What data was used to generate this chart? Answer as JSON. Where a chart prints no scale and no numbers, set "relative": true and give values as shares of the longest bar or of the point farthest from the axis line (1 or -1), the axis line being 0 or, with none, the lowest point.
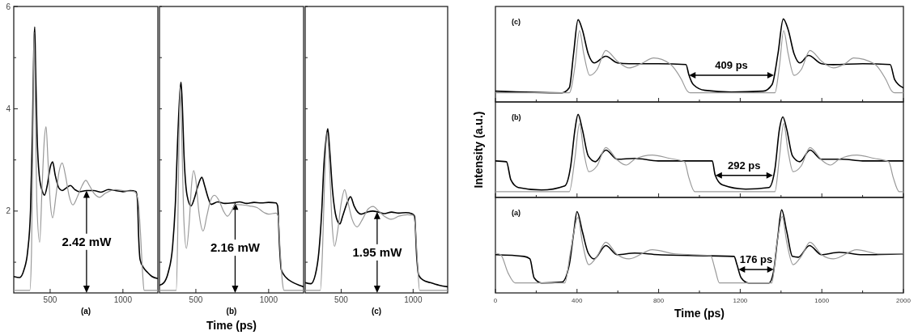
{
  "chart_data": [
    {
      "type": "line",
      "xlim": [
        250,
        1240
      ],
      "xticks": [
        500,
        1000
      ],
      "ylim": [
        0.4,
        6
      ],
      "yticks": [
        {
          "value": 1,
          "label": null
        },
        2,
        {
          "value": 3,
          "label": null
        },
        4,
        {
          "value": 5,
          "label": null
        },
        6
      ],
      "annotations": [
        "(a)",
        "2.42 mW"
      ],
      "series": [
        {
          "color": "#000000",
          "x": [
            250,
            290,
            320,
            345,
            365,
            378,
            388,
            394,
            400,
            410,
            425,
            445,
            461,
            480,
            500,
            517,
            535,
            560,
            583,
            610,
            639,
            670,
            700,
            750,
            800,
            850,
            900,
            950,
            1000,
            1050,
            1090,
            1100,
            1108,
            1118,
            1140,
            1170,
            1200,
            1240
          ],
          "values": [
            0.72,
            0.7,
            0.85,
            1.2,
            2.0,
            3.5,
            5.2,
            5.6,
            4.8,
            3.5,
            2.7,
            2.4,
            2.31,
            2.5,
            2.85,
            2.96,
            2.7,
            2.45,
            2.4,
            2.45,
            2.5,
            2.42,
            2.38,
            2.4,
            2.4,
            2.37,
            2.42,
            2.4,
            2.38,
            2.4,
            2.38,
            2.2,
            1.5,
            1.05,
            0.9,
            0.8,
            0.72,
            0.68
          ]
        },
        {
          "color": "#999999",
          "x": [
            250,
            360,
            372,
            382,
            389,
            396,
            408,
            428,
            445,
            460,
            472,
            485,
            500,
            517,
            540,
            560,
            583,
            605,
            630,
            656,
            690,
            720,
            745,
            770,
            800,
            839,
            880,
            950,
            1000,
            1080,
            1105,
            1120,
            1135,
            1145,
            1240
          ],
          "values": [
            0.45,
            0.45,
            1.2,
            3.5,
            5.5,
            4.5,
            2.2,
            1.39,
            2.5,
            3.4,
            3.65,
            3.0,
            2.2,
            1.87,
            2.3,
            2.75,
            2.94,
            2.7,
            2.3,
            2.12,
            2.3,
            2.5,
            2.6,
            2.5,
            2.35,
            2.27,
            2.35,
            2.42,
            2.4,
            2.38,
            2.2,
            1.6,
            0.8,
            0.45,
            0.45
          ]
        }
      ]
    },
    {
      "type": "line",
      "xlim": [
        250,
        1240
      ],
      "xticks": [
        500,
        1000
      ],
      "ylim": [
        0.4,
        6
      ],
      "yticks": [
        {
          "value": 1,
          "label": null
        },
        {
          "value": 2,
          "label": null
        },
        {
          "value": 3,
          "label": null
        },
        {
          "value": 4,
          "label": null
        },
        {
          "value": 5,
          "label": null
        },
        {
          "value": 6,
          "label": null
        }
      ],
      "tick_labels": "x",
      "xlabel": "Time (ps)",
      "annotations": [
        "(b)",
        "2.16 mW"
      ],
      "series": [
        {
          "color": "#000000",
          "x": [
            250,
            280,
            310,
            340,
            360,
            375,
            390,
            398,
            405,
            420,
            440,
            467,
            490,
            515,
            541,
            560,
            580,
            606,
            650,
            700,
            750,
            800,
            850,
            900,
            950,
            1000,
            1050,
            1062,
            1075,
            1087,
            1120,
            1170,
            1210,
            1240
          ],
          "values": [
            0.55,
            0.6,
            0.8,
            1.3,
            2.2,
            3.4,
            4.3,
            4.52,
            4.2,
            3.0,
            2.3,
            2.1,
            2.25,
            2.5,
            2.66,
            2.5,
            2.3,
            2.13,
            2.18,
            2.15,
            2.16,
            2.18,
            2.15,
            2.17,
            2.16,
            2.17,
            2.16,
            2.1,
            1.3,
            0.85,
            0.7,
            0.6,
            0.55,
            0.52
          ]
        },
        {
          "color": "#999999",
          "x": [
            250,
            365,
            375,
            385,
            393,
            402,
            418,
            435,
            455,
            470,
            485,
            500,
            520,
            550,
            575,
            600,
            628,
            660,
            690,
            717,
            745,
            772,
            820,
            870,
            920,
            970,
            1000,
            1050,
            1065,
            1080,
            1095,
            1106,
            1240
          ],
          "values": [
            0.45,
            0.45,
            1.5,
            3.6,
            4.43,
            3.6,
            1.8,
            1.27,
            1.8,
            2.5,
            2.79,
            2.6,
            2.0,
            1.61,
            1.9,
            2.2,
            2.31,
            2.2,
            2.0,
            1.9,
            2.0,
            2.13,
            2.12,
            2.1,
            2.07,
            1.97,
            1.94,
            1.96,
            1.9,
            1.2,
            0.6,
            0.45,
            0.45
          ]
        }
      ]
    },
    {
      "type": "line",
      "xlim": [
        250,
        1240
      ],
      "xticks": [
        500,
        1000
      ],
      "ylim": [
        0.4,
        6
      ],
      "yticks": [
        {
          "value": 1,
          "label": null
        },
        {
          "value": 2,
          "label": null
        },
        {
          "value": 3,
          "label": null
        },
        {
          "value": 4,
          "label": null
        },
        {
          "value": 5,
          "label": null
        },
        {
          "value": 6,
          "label": null
        }
      ],
      "tick_labels": "x",
      "annotations": [
        "(c)",
        "1.95 mW"
      ],
      "series": [
        {
          "color": "#000000",
          "x": [
            250,
            290,
            320,
            345,
            365,
            380,
            395,
            407,
            420,
            440,
            460,
            475,
            491,
            510,
            540,
            565,
            590,
            615,
            639,
            680,
            720,
            760,
            800,
            850,
            900,
            950,
            990,
            1010,
            1025,
            1038,
            1070,
            1120,
            1180,
            1240
          ],
          "values": [
            0.6,
            0.58,
            0.75,
            1.2,
            2.0,
            2.9,
            3.4,
            3.61,
            3.2,
            2.4,
            1.95,
            1.8,
            1.75,
            1.9,
            2.15,
            2.28,
            2.1,
            1.98,
            1.94,
            1.98,
            2.0,
            1.98,
            1.95,
            1.98,
            1.96,
            1.97,
            1.95,
            1.9,
            1.1,
            0.75,
            0.65,
            0.6,
            0.55,
            0.52
          ]
        },
        {
          "color": "#999999",
          "x": [
            250,
            355,
            370,
            385,
            402,
            420,
            438,
            454,
            475,
            500,
            524,
            545,
            575,
            611,
            650,
            690,
            722,
            760,
            800,
            850,
            900,
            960,
            1000,
            1015,
            1030,
            1045,
            1240
          ],
          "values": [
            0.45,
            0.45,
            1.2,
            2.6,
            3.54,
            2.8,
            1.7,
            1.31,
            1.6,
            2.15,
            2.42,
            2.2,
            1.85,
            1.69,
            1.85,
            2.05,
            2.09,
            2.0,
            1.9,
            1.84,
            1.9,
            1.93,
            1.92,
            1.7,
            1.0,
            0.45,
            0.45
          ]
        }
      ]
    },
    {
      "type": "line",
      "relative": true,
      "xlim": [
        0,
        2000
      ],
      "xticks": [
        0,
        {
          "value": 200,
          "label": null
        },
        400,
        {
          "value": 600,
          "label": null
        },
        800,
        {
          "value": 1000,
          "label": null
        },
        1200,
        {
          "value": 1400,
          "label": null
        },
        1600,
        {
          "value": 1800,
          "label": null
        },
        2000
      ],
      "tick_labels": false,
      "annotations": [
        "(c)",
        "409 ps"
      ],
      "series": [
        {
          "color": "#000000",
          "x": [
            0,
            326,
            362,
            383,
            405,
            426,
            455,
            484,
            541,
            598,
            655,
            798,
            934,
            948,
            970,
            1027,
            1156,
            1313,
            1356,
            1385,
            1411,
            1435,
            1464,
            1492,
            1535,
            1599,
            1657,
            1800,
            1935,
            1957,
            2000
          ],
          "values": [
            0.13,
            0.11,
            0.17,
            0.58,
            0.99,
            0.87,
            0.58,
            0.47,
            0.55,
            0.47,
            0.46,
            0.46,
            0.45,
            0.33,
            0.21,
            0.14,
            0.12,
            0.13,
            0.21,
            0.58,
            1.0,
            0.87,
            0.58,
            0.47,
            0.56,
            0.46,
            0.45,
            0.46,
            0.45,
            0.27,
            0.17
          ]
        },
        {
          "color": "#999999",
          "x": [
            0,
            362,
            390,
            412,
            433,
            462,
            498,
            541,
            598,
            655,
            713,
            776,
            855,
            912,
            941,
            955,
            1370,
            1392,
            1413,
            1435,
            1464,
            1499,
            1542,
            1599,
            1657,
            1714,
            1756,
            1857,
            1914,
            1943,
            1957,
            2000
          ],
          "values": [
            0.11,
            0.11,
            0.43,
            0.86,
            0.58,
            0.32,
            0.39,
            0.62,
            0.49,
            0.41,
            0.46,
            0.53,
            0.46,
            0.27,
            0.13,
            0.11,
            0.11,
            0.43,
            0.86,
            0.58,
            0.32,
            0.39,
            0.62,
            0.49,
            0.41,
            0.46,
            0.53,
            0.46,
            0.27,
            0.13,
            0.11,
            0.11
          ]
        }
      ]
    },
    {
      "type": "line",
      "relative": true,
      "xlim": [
        0,
        2000
      ],
      "xticks": [
        0,
        {
          "value": 200,
          "label": null
        },
        400,
        {
          "value": 600,
          "label": null
        },
        800,
        {
          "value": 1000,
          "label": null
        },
        1200,
        {
          "value": 1400,
          "label": null
        },
        1600,
        {
          "value": 1800,
          "label": null
        },
        2000
      ],
      "tick_labels": false,
      "ylabel": "Intensity (a.u.)",
      "annotations": [
        "(b)",
        "292 ps"
      ],
      "series": [
        {
          "color": "#000000",
          "x": [
            0,
            54,
            76,
            112,
            226,
            340,
            369,
            390,
            405,
            426,
            455,
            490,
            541,
            598,
            683,
            798,
            1063,
            1077,
            1113,
            1227,
            1341,
            1370,
            1392,
            1409,
            1428,
            1456,
            1492,
            1542,
            1599,
            1699,
            1800,
            2000
          ],
          "values": [
            0.44,
            0.43,
            0.21,
            0.12,
            0.09,
            0.14,
            0.38,
            0.82,
            1.0,
            0.82,
            0.5,
            0.43,
            0.57,
            0.46,
            0.47,
            0.44,
            0.44,
            0.27,
            0.15,
            0.1,
            0.12,
            0.34,
            0.82,
            0.97,
            0.82,
            0.5,
            0.43,
            0.57,
            0.46,
            0.46,
            0.44,
            0.44
          ]
        },
        {
          "color": "#999999",
          "x": [
            0,
            362,
            390,
            412,
            433,
            458,
            498,
            541,
            598,
            641,
            683,
            769,
            855,
            927,
            948,
            977,
            1370,
            1392,
            1413,
            1435,
            1459,
            1499,
            1542,
            1599,
            1642,
            1685,
            1771,
            1857,
            1928,
            1950,
            1979,
            2000
          ],
          "values": [
            0.07,
            0.07,
            0.48,
            0.89,
            0.55,
            0.31,
            0.38,
            0.6,
            0.45,
            0.39,
            0.46,
            0.51,
            0.47,
            0.43,
            0.24,
            0.07,
            0.07,
            0.48,
            0.89,
            0.55,
            0.31,
            0.38,
            0.6,
            0.45,
            0.39,
            0.46,
            0.51,
            0.47,
            0.43,
            0.24,
            0.07,
            0.07
          ]
        }
      ]
    },
    {
      "type": "line",
      "relative": true,
      "xlim": [
        0,
        2000
      ],
      "xticks": [
        0,
        {
          "value": 200,
          "label": null
        },
        400,
        {
          "value": 600,
          "label": null
        },
        800,
        {
          "value": 1000,
          "label": null
        },
        1200,
        {
          "value": 1400,
          "label": null
        },
        1600,
        {
          "value": 1800,
          "label": null
        },
        2000
      ],
      "tick_labels": "x",
      "xlabel": "Time (ps)",
      "annotations": [
        "(a)",
        "176 ps"
      ],
      "series": [
        {
          "color": "#000000",
          "x": [
            0,
            140,
            169,
            190,
            226,
            326,
            362,
            383,
            400,
            426,
            455,
            484,
            541,
            598,
            683,
            798,
            1170,
            1184,
            1205,
            1241,
            1341,
            1362,
            1384,
            1403,
            1428,
            1456,
            1485,
            1539,
            1599,
            1685,
            1800,
            2000
          ],
          "values": [
            0.46,
            0.44,
            0.41,
            0.18,
            0.12,
            0.13,
            0.34,
            0.71,
            0.98,
            0.74,
            0.48,
            0.41,
            0.57,
            0.46,
            0.48,
            0.46,
            0.44,
            0.34,
            0.18,
            0.12,
            0.12,
            0.24,
            0.67,
            1.0,
            0.74,
            0.44,
            0.43,
            0.57,
            0.46,
            0.49,
            0.46,
            0.47
          ]
        },
        {
          "color": "#999999",
          "x": [
            0,
            26,
            62,
            97,
            340,
            369,
            405,
            426,
            458,
            498,
            541,
            598,
            655,
            769,
            884,
            1055,
            1077,
            1098,
            1355,
            1377,
            1406,
            1428,
            1459,
            1499,
            1542,
            1599,
            1657,
            1771,
            1885,
            2000
          ],
          "values": [
            0.48,
            0.46,
            0.24,
            0.12,
            0.12,
            0.51,
            0.91,
            0.61,
            0.34,
            0.44,
            0.61,
            0.46,
            0.41,
            0.52,
            0.47,
            0.45,
            0.28,
            0.12,
            0.12,
            0.54,
            0.92,
            0.61,
            0.34,
            0.44,
            0.61,
            0.46,
            0.41,
            0.52,
            0.47,
            0.47
          ]
        }
      ]
    }
  ]
}
